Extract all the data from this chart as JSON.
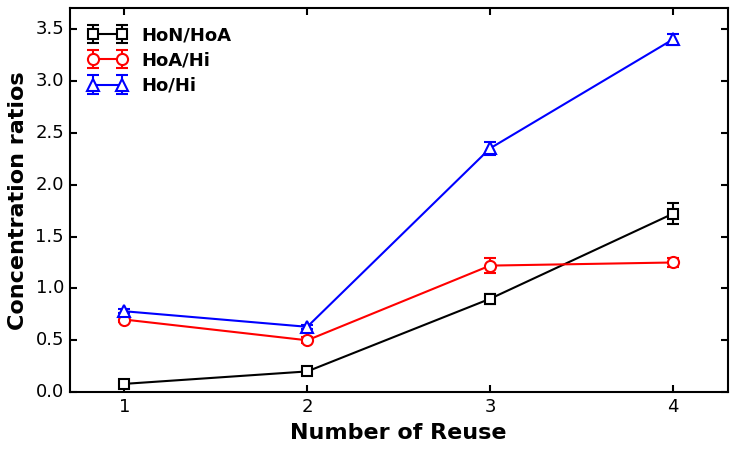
{
  "x": [
    1,
    2,
    3,
    4
  ],
  "HoN_HoA": [
    0.08,
    0.2,
    0.9,
    1.72
  ],
  "HoA_Hi": [
    0.7,
    0.5,
    1.22,
    1.25
  ],
  "Ho_Hi": [
    0.78,
    0.63,
    2.35,
    3.4
  ],
  "HoN_HoA_err": [
    0.03,
    0.0,
    0.05,
    0.1
  ],
  "HoA_Hi_err": [
    0.02,
    0.03,
    0.07,
    0.04
  ],
  "Ho_Hi_err": [
    0.02,
    0.02,
    0.06,
    0.05
  ],
  "xlabel": "Number of Reuse",
  "ylabel": "Concentration ratios",
  "ylim": [
    0,
    3.7
  ],
  "xlim": [
    0.7,
    4.3
  ],
  "legend_labels": [
    "HoN/HoA",
    "HoA/Hi",
    "Ho/Hi"
  ],
  "colors": [
    "black",
    "red",
    "blue"
  ],
  "label_fontsize": 16,
  "legend_fontsize": 13,
  "tick_fontsize": 13,
  "bg_color": "#ffffff"
}
